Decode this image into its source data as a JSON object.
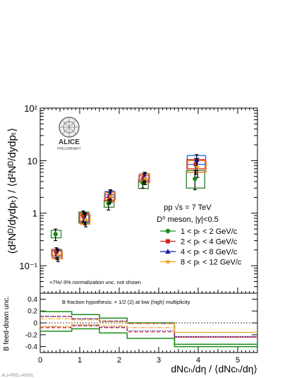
{
  "chart_data": [
    {
      "type": "scatter",
      "panel": "top",
      "scale_y": "log",
      "xlim": [
        0,
        5.5
      ],
      "ylim": [
        0.03,
        100
      ],
      "ylabel": "(d²Nᴰ/dydpₜ) / ⟨d²Nᴰ/dydpₜ⟩",
      "ytick_labels": [
        "10⁻¹",
        "1",
        "10",
        "10²"
      ],
      "logo": {
        "text": "ALICE",
        "subtext": "PRELIMINARY"
      },
      "system_label": "pp √s = 7 TeV",
      "meson_label": "D⁰ meson, |y|<0.5",
      "note": "+7%/-3% normalization unc. not shown",
      "series": [
        {
          "name": "1 < pₜ < 2 GeV/c",
          "color": "#1a8c1a",
          "marker": "circle",
          "x": [
            0.42,
            1.12,
            1.76,
            2.63,
            3.95
          ],
          "y": [
            0.4,
            0.9,
            1.55,
            3.8,
            4.5
          ],
          "err_lo": [
            0.3,
            0.7,
            1.15,
            3.0,
            2.8
          ],
          "err_hi": [
            0.5,
            1.1,
            2.0,
            4.6,
            6.5
          ],
          "box_lo": [
            0.34,
            0.65,
            1.3,
            2.95,
            3.0
          ],
          "box_hi": [
            0.47,
            1.05,
            1.75,
            4.3,
            6.5
          ]
        },
        {
          "name": "2 < pₜ < 4 GeV/c",
          "color": "#d42020",
          "marker": "square",
          "x": [
            0.42,
            1.12,
            1.76,
            2.63,
            3.95
          ],
          "y": [
            0.18,
            0.85,
            2.0,
            4.6,
            8.5
          ],
          "err_lo": [
            0.14,
            0.65,
            1.5,
            3.6,
            5.5
          ],
          "err_hi": [
            0.22,
            1.05,
            2.5,
            5.6,
            11.0
          ],
          "box_lo": [
            0.155,
            0.7,
            1.7,
            4.0,
            7.0
          ],
          "box_hi": [
            0.205,
            1.0,
            2.3,
            5.2,
            10.5
          ]
        },
        {
          "name": "4 < pₜ < 8 GeV/c",
          "color": "#1c1ca8",
          "marker": "triangle",
          "x": [
            0.42,
            1.12,
            1.76,
            2.63,
            3.95
          ],
          "y": [
            0.17,
            0.78,
            2.3,
            5.0,
            10.5
          ],
          "err_lo": [
            0.13,
            0.6,
            1.8,
            4.0,
            7.5
          ],
          "err_hi": [
            0.21,
            0.98,
            2.8,
            6.0,
            13.0
          ],
          "box_lo": [
            0.145,
            0.68,
            2.0,
            4.3,
            8.5
          ],
          "box_hi": [
            0.195,
            0.92,
            2.6,
            5.6,
            12.5
          ]
        },
        {
          "name": "8 < pₜ < 12 GeV/c",
          "color": "#f0a020",
          "marker": "star",
          "x": [
            0.42,
            1.12,
            1.76,
            2.63,
            3.95
          ],
          "y": [
            0.16,
            0.75,
            2.1,
            4.6,
            7.5
          ],
          "err_lo": [
            0.12,
            0.55,
            1.6,
            3.5,
            4.8
          ],
          "err_hi": [
            0.2,
            1.0,
            2.7,
            5.8,
            11.0
          ],
          "box_lo": [
            0.135,
            0.62,
            1.8,
            3.8,
            6.0
          ],
          "box_hi": [
            0.185,
            0.95,
            2.5,
            5.6,
            10.0
          ]
        }
      ],
      "box_colors": [
        "#3a8a3a",
        "#e23a2a",
        "#3070e0",
        "#f07a20"
      ]
    },
    {
      "type": "line",
      "panel": "bottom",
      "step": true,
      "xlim": [
        0,
        5.5
      ],
      "ylim": [
        -0.5,
        0.5
      ],
      "xlabel": "dNᴄₕ/dη / ⟨dNᴄₕ/dη⟩",
      "ylabel": "B feed-down unc.",
      "ytick_labels": [
        "-0.4",
        "-0.2",
        "0",
        "0.2",
        "0.4"
      ],
      "xtick_labels": [
        "0",
        "1",
        "2",
        "3",
        "4",
        "5"
      ],
      "annotation": "B fraction hypothesis: × 1/2 (2) at low (high) multiplicity",
      "bin_edges": [
        0,
        0.8,
        1.5,
        2.2,
        3.4,
        5.5
      ],
      "series": [
        {
          "color": "#1a8c1a",
          "style": "solid",
          "upper": [
            0.19,
            0.14,
            0.08,
            0.0,
            -0.36
          ],
          "lower": [
            -0.14,
            -0.1,
            -0.17,
            -0.26,
            -0.4
          ]
        },
        {
          "color": "#d42020",
          "style": "dashed",
          "upper": [
            0.11,
            0.07,
            0.03,
            -0.01,
            -0.24
          ],
          "lower": [
            -0.08,
            -0.05,
            -0.08,
            -0.15,
            -0.24
          ]
        },
        {
          "color": "#1c1ca8",
          "style": "dotted",
          "upper": [
            0.11,
            0.07,
            0.03,
            -0.01,
            -0.23
          ],
          "lower": [
            -0.06,
            -0.04,
            -0.07,
            -0.13,
            -0.23
          ]
        },
        {
          "color": "#f0a020",
          "style": "dashdot",
          "upper": [
            0.07,
            0.05,
            0.02,
            -0.01,
            -0.16
          ],
          "lower": [
            -0.06,
            -0.03,
            -0.05,
            -0.08,
            -0.16
          ]
        }
      ]
    }
  ],
  "footer_label": "ALI-PREL-45001"
}
